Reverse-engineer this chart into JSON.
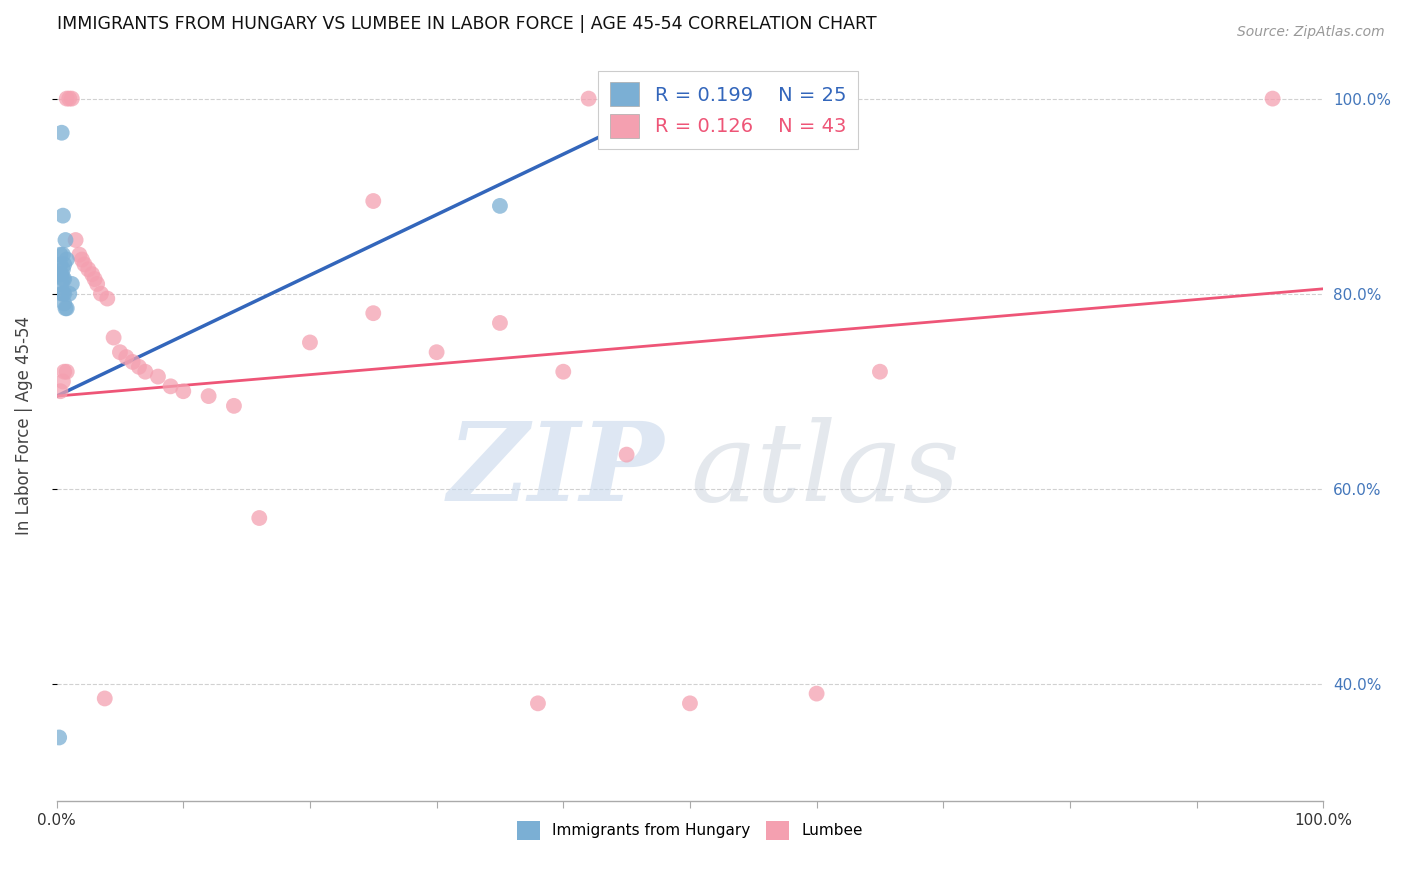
{
  "title": "IMMIGRANTS FROM HUNGARY VS LUMBEE IN LABOR FORCE | AGE 45-54 CORRELATION CHART",
  "source": "Source: ZipAtlas.com",
  "ylabel": "In Labor Force | Age 45-54",
  "xlim": [
    0,
    1.0
  ],
  "ylim": [
    0.28,
    1.05
  ],
  "y_ticks": [
    0.4,
    0.6,
    0.8,
    1.0
  ],
  "y_tick_labels": [
    "40.0%",
    "60.0%",
    "80.0%",
    "100.0%"
  ],
  "blue_color": "#7BAFD4",
  "pink_color": "#F4A0B0",
  "blue_line_color": "#3366BB",
  "pink_line_color": "#EE5577",
  "legend_r_blue": "R = 0.199",
  "legend_n_blue": "N = 25",
  "legend_r_pink": "R = 0.126",
  "legend_n_pink": "N = 43",
  "blue_x": [
    0.002,
    0.003,
    0.003,
    0.003,
    0.004,
    0.004,
    0.004,
    0.004,
    0.005,
    0.005,
    0.005,
    0.005,
    0.005,
    0.006,
    0.006,
    0.006,
    0.006,
    0.007,
    0.007,
    0.008,
    0.008,
    0.01,
    0.012,
    0.35,
    0.5
  ],
  "blue_y": [
    0.345,
    0.82,
    0.83,
    0.84,
    0.8,
    0.81,
    0.82,
    0.965,
    0.8,
    0.815,
    0.825,
    0.84,
    0.88,
    0.79,
    0.8,
    0.815,
    0.83,
    0.785,
    0.855,
    0.785,
    0.835,
    0.8,
    0.81,
    0.89,
    1.0
  ],
  "pink_x": [
    0.003,
    0.005,
    0.006,
    0.008,
    0.008,
    0.01,
    0.012,
    0.015,
    0.018,
    0.02,
    0.022,
    0.025,
    0.028,
    0.03,
    0.032,
    0.035,
    0.04,
    0.045,
    0.05,
    0.055,
    0.06,
    0.065,
    0.07,
    0.08,
    0.09,
    0.1,
    0.12,
    0.14,
    0.16,
    0.2,
    0.25,
    0.25,
    0.3,
    0.35,
    0.4,
    0.42,
    0.45,
    0.5,
    0.6,
    0.65,
    0.38,
    0.038,
    0.96
  ],
  "pink_y": [
    0.7,
    0.71,
    0.72,
    1.0,
    0.72,
    1.0,
    1.0,
    0.855,
    0.84,
    0.835,
    0.83,
    0.825,
    0.82,
    0.815,
    0.81,
    0.8,
    0.795,
    0.755,
    0.74,
    0.735,
    0.73,
    0.725,
    0.72,
    0.715,
    0.705,
    0.7,
    0.695,
    0.685,
    0.57,
    0.75,
    0.78,
    0.895,
    0.74,
    0.77,
    0.72,
    1.0,
    0.635,
    0.38,
    0.39,
    0.72,
    0.38,
    0.385,
    1.0
  ]
}
